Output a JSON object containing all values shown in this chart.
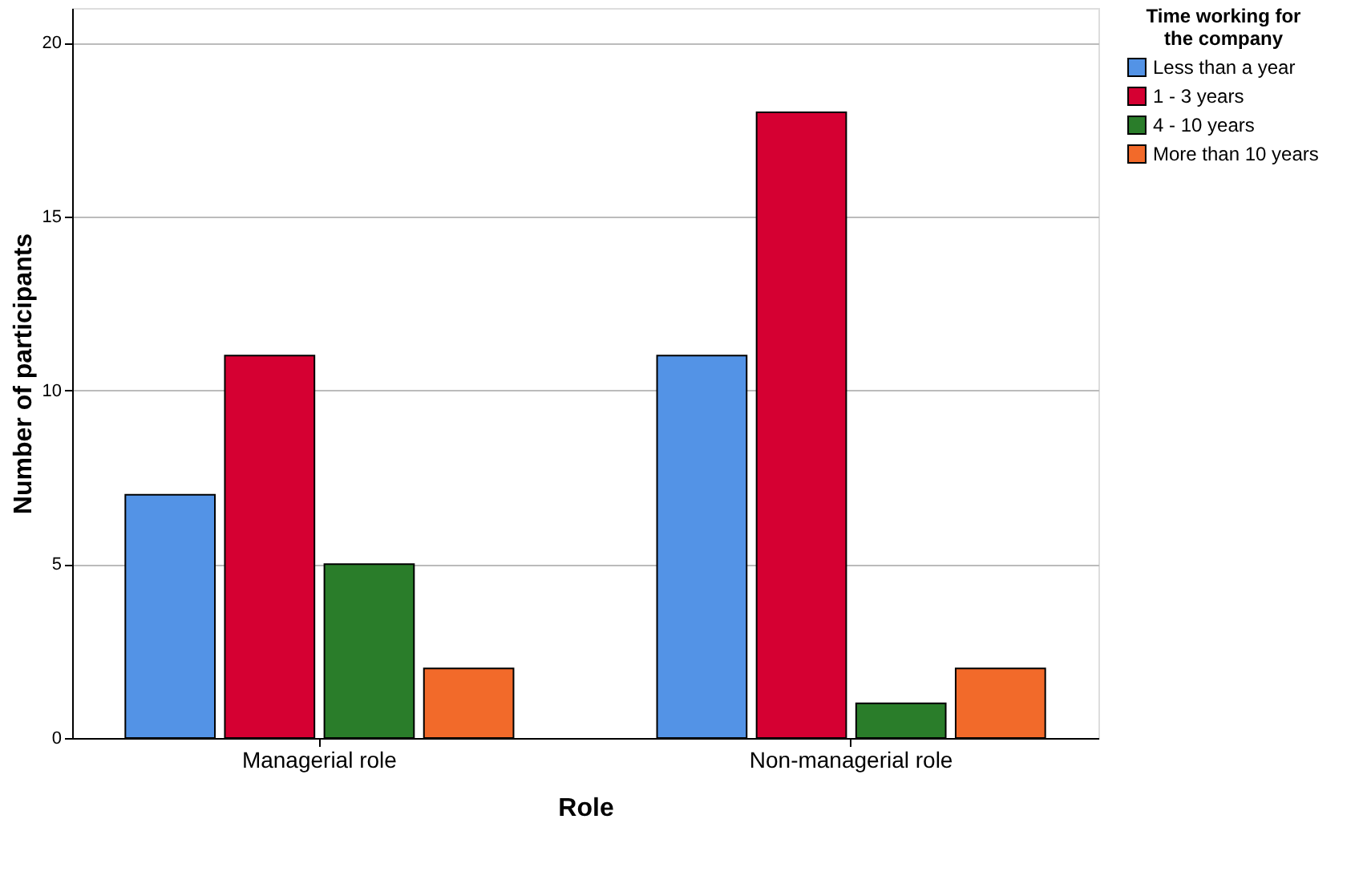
{
  "chart_data": {
    "type": "bar",
    "xlabel": "Role",
    "ylabel": "Number of participants",
    "legend_title": "Time working for the company",
    "categories": [
      "Managerial role",
      "Non-managerial role"
    ],
    "series": [
      {
        "name": "Less than a year",
        "color": "#5393e6",
        "values": [
          7,
          11
        ]
      },
      {
        "name": "1 - 3 years",
        "color": "#d50032",
        "values": [
          11,
          18
        ]
      },
      {
        "name": "4 - 10 years",
        "color": "#2a7d2a",
        "values": [
          5,
          1
        ]
      },
      {
        "name": "More than 10 years",
        "color": "#f26a2a",
        "values": [
          2,
          2
        ]
      }
    ],
    "ylim": [
      0,
      21
    ],
    "yticks": [
      0,
      5,
      10,
      15,
      20
    ],
    "grid": "y",
    "legend": "top right"
  }
}
